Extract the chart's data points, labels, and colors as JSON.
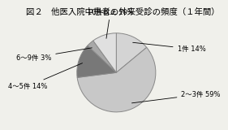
{
  "title": "図２　他医入院中患者の外来受診の頻度（１年間）",
  "labels": [
    "1件",
    "2～3件",
    "4～5件",
    "6～9件",
    "10件以上"
  ],
  "label_pcts": [
    "14%",
    "59%",
    "14%",
    "3%",
    "10%"
  ],
  "values": [
    14,
    59,
    14,
    3,
    10
  ],
  "colors": [
    "#d4d4d4",
    "#c8c8c8",
    "#787878",
    "#a8a8a8",
    "#e0e0e0"
  ],
  "edge_color": "#888888",
  "background_color": "#f0f0eb",
  "title_fontsize": 7.5,
  "label_fontsize": 6.0,
  "startangle": 90
}
